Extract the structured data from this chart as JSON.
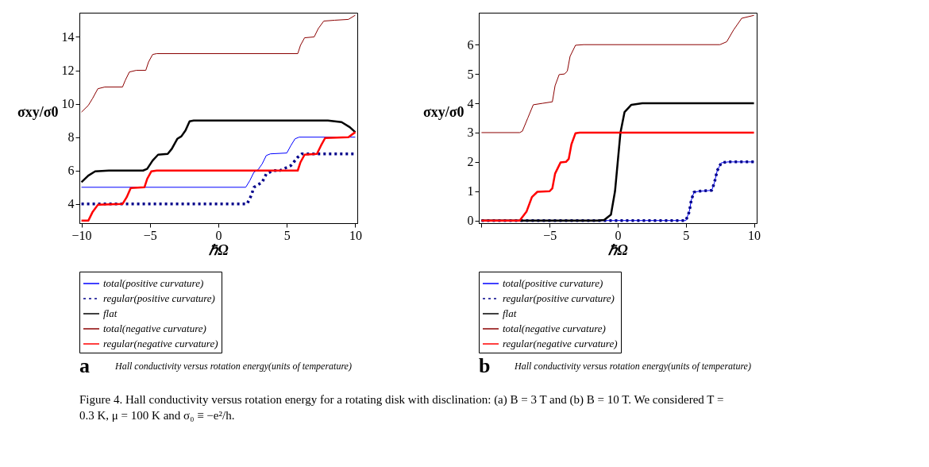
{
  "chart_data": [
    {
      "type": "line",
      "xlabel": "ℏΩ",
      "ylabel": "σxy/σ0",
      "xlim": [
        -10.15,
        10.15
      ],
      "ylim": [
        2.85,
        15.45
      ],
      "xticks": [
        -10,
        -5,
        0,
        5,
        10
      ],
      "yticks": [
        4,
        6,
        8,
        10,
        12,
        14
      ],
      "grid": false,
      "legend": "bottom",
      "marker": "none",
      "annotations": [
        "a",
        "Hall conductivity versus rotation energy(units of temperature)"
      ],
      "series": [
        {
          "name": "total(positive curvature)",
          "color": "#0000ff",
          "line_style": "solid",
          "x": [
            -10,
            2.0,
            2.3,
            2.6,
            2.9,
            3.2,
            3.5,
            3.8,
            5.0,
            5.3,
            5.6,
            5.9,
            10
          ],
          "values": [
            5,
            5,
            5.4,
            5.9,
            6.05,
            6.4,
            6.9,
            7.0,
            7.05,
            7.5,
            7.9,
            8,
            8
          ]
        },
        {
          "name": "regular(positive curvature)",
          "color": "#00008b",
          "line_style": "dotted",
          "x": [
            -10,
            2.1,
            2.4,
            2.6,
            3.2,
            3.5,
            4.0,
            4.5,
            5.3,
            5.8,
            6.1,
            10
          ],
          "values": [
            4,
            4,
            4.5,
            5.0,
            5.3,
            5.8,
            6.0,
            6.0,
            6.3,
            6.8,
            7,
            7
          ]
        },
        {
          "name": "flat",
          "color": "#000000",
          "line_style": "solid",
          "x": [
            -10,
            -9.5,
            -9,
            -8,
            -5.5,
            -5.2,
            -4.8,
            -4.4,
            -3.7,
            -3.4,
            -3.0,
            -2.7,
            -2.4,
            -2.1,
            -1.8,
            7,
            8,
            9,
            9.6,
            10
          ],
          "values": [
            5.3,
            5.7,
            5.95,
            6.0,
            6.0,
            6.1,
            6.6,
            6.95,
            7.0,
            7.3,
            7.9,
            8.05,
            8.4,
            8.95,
            9,
            9,
            9.0,
            8.9,
            8.6,
            8.3
          ]
        },
        {
          "name": "total(negative curvature)",
          "color": "#8b0000",
          "line_style": "solid",
          "x": [
            -10,
            -9.5,
            -9.2,
            -8.8,
            -8.3,
            -7.0,
            -6.8,
            -6.5,
            -6.0,
            -5.3,
            -5.1,
            -4.8,
            -4.5,
            5.8,
            6.0,
            6.3,
            7.0,
            7.3,
            7.7,
            8.5,
            9.5,
            10
          ],
          "values": [
            9.5,
            9.9,
            10.3,
            10.9,
            11,
            11,
            11.4,
            11.9,
            12,
            12,
            12.5,
            12.95,
            13,
            13,
            13.5,
            13.95,
            14,
            14.5,
            14.95,
            15,
            15.05,
            15.3
          ]
        },
        {
          "name": "regular(negative curvature)",
          "color": "#ff0000",
          "line_style": "solid",
          "x": [
            -10,
            -9.5,
            -9.2,
            -8.8,
            -7.0,
            -6.7,
            -6.4,
            -5.4,
            -5.2,
            -4.9,
            -4.5,
            5.8,
            6.0,
            6.3,
            7.2,
            7.5,
            7.8,
            9.5,
            10
          ],
          "values": [
            3,
            3.0,
            3.5,
            3.95,
            4,
            4.4,
            4.95,
            5,
            5.5,
            5.95,
            6,
            6,
            6.5,
            6.95,
            7,
            7.5,
            7.95,
            8,
            8.3
          ]
        }
      ]
    },
    {
      "type": "line",
      "xlabel": "ℏΩ",
      "ylabel": "σxy/σ0",
      "xlim": [
        -10.2,
        10.2
      ],
      "ylim": [
        -0.09,
        7.09
      ],
      "xticks": [
        {
          "value": -10,
          "label": null
        },
        -5,
        0,
        5,
        10
      ],
      "yticks": [
        0,
        1,
        2,
        3,
        4,
        5,
        6
      ],
      "grid": false,
      "legend": "bottom",
      "marker": "none",
      "annotations": [
        "b",
        "Hall conductivity versus rotation energy(units of temperature)",
        "Figure 4. Hall conductivity versus rotation energy for a rotating disk with disclination: (a) B = 3 T and (b) B = 10 T. We considered T = 0.3 K, μ = 100 K and σ₀ ≡ −e²/h."
      ],
      "series": [
        {
          "name": "total(positive curvature)",
          "color": "#0000ff",
          "line_style": "solid",
          "x": [
            -10,
            5.0,
            5.25,
            5.4,
            5.6,
            6.0,
            6.9,
            7.1,
            7.3,
            7.6,
            8.1,
            10
          ],
          "values": [
            0,
            0,
            0.3,
            0.7,
            0.97,
            1.0,
            1.03,
            1.3,
            1.7,
            1.97,
            2,
            2
          ]
        },
        {
          "name": "regular(positive curvature)",
          "color": "#00008b",
          "line_style": "dotted",
          "x": [
            -10,
            5.0,
            5.25,
            5.4,
            5.6,
            6.0,
            6.9,
            7.1,
            7.3,
            7.6,
            8.1,
            10
          ],
          "values": [
            0,
            0,
            0.3,
            0.7,
            0.97,
            1.0,
            1.03,
            1.3,
            1.7,
            1.97,
            2,
            2
          ]
        },
        {
          "name": "flat",
          "color": "#000000",
          "line_style": "solid",
          "x": [
            -10,
            -1.5,
            -1,
            -0.5,
            -0.2,
            0,
            0.2,
            0.5,
            1.0,
            1.8,
            10
          ],
          "values": [
            0,
            0,
            0.02,
            0.2,
            1,
            2,
            3,
            3.7,
            3.95,
            4,
            4
          ]
        },
        {
          "name": "total(negative curvature)",
          "color": "#8b0000",
          "line_style": "solid",
          "x": [
            -10,
            -7.2,
            -7.0,
            -6.6,
            -6.2,
            -5.5,
            -4.8,
            -4.6,
            -4.3,
            -3.9,
            -3.7,
            -3.5,
            -3.1,
            -2.5,
            7.5,
            8.0,
            8.5,
            9.1,
            10
          ],
          "values": [
            3,
            3,
            3.05,
            3.5,
            3.95,
            4,
            4.05,
            4.6,
            4.98,
            5,
            5.1,
            5.6,
            5.98,
            6,
            6,
            6.1,
            6.5,
            6.9,
            7.0
          ]
        },
        {
          "name": "regular(negative curvature)",
          "color": "#ff0000",
          "line_style": "solid",
          "x": [
            -10,
            -7.2,
            -6.7,
            -6.3,
            -5.9,
            -5.0,
            -4.8,
            -4.6,
            -4.2,
            -3.8,
            -3.6,
            -3.4,
            -3.1,
            -2.8,
            10
          ],
          "values": [
            0,
            0,
            0.3,
            0.8,
            0.98,
            1,
            1.1,
            1.6,
            1.98,
            2,
            2.1,
            2.6,
            2.98,
            3,
            3
          ]
        }
      ]
    }
  ]
}
